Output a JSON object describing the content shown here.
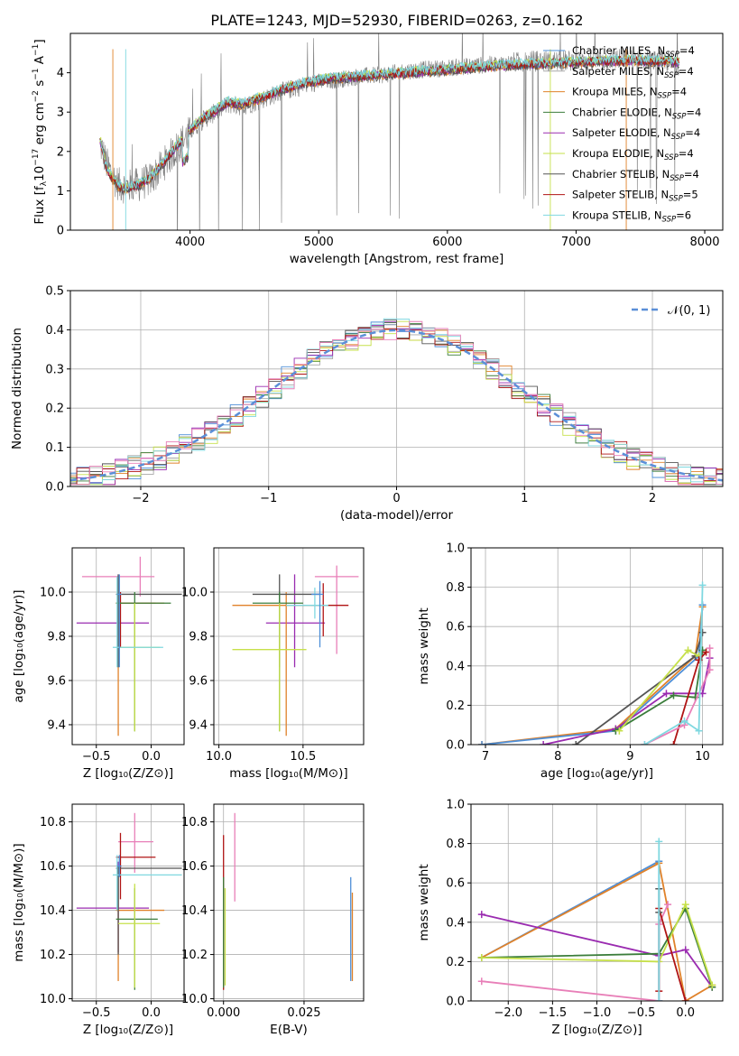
{
  "figure": {
    "title": "PLATE=1243, MJD=52930, FIBERID=0263, z=0.162"
  },
  "colors": {
    "chabrier_miles": "#4e8fd8",
    "salpeter_miles": "#a8a8a8",
    "kroupa_miles": "#e0822a",
    "chabrier_elodie": "#3b7d3b",
    "salpeter_elodie": "#9a2bb0",
    "kroupa_elodie": "#c6e04a",
    "chabrier_stelib": "#555555",
    "salpeter_stelib": "#b01414",
    "kroupa_stelib": "#7fd8e0",
    "pink": "#e87fb8",
    "gray_spectrum": "#7f7f7f",
    "grid": "#b0b0b0",
    "gauss": "#5b8fd8"
  },
  "chart_data": [
    {
      "id": "spectrum",
      "type": "line",
      "title": "PLATE=1243, MJD=52930, FIBERID=0263, z=0.162",
      "xlabel": "wavelength [Angstrom, rest frame]",
      "ylabel_parts": [
        "Flux [f",
        "λ",
        "10",
        "−17",
        " erg cm",
        "−2",
        " s",
        "−1",
        " A",
        "−1",
        "]"
      ],
      "xlim": [
        3070,
        8140
      ],
      "ylim": [
        0,
        5
      ],
      "xticks": [
        4000,
        5000,
        6000,
        7000,
        8000
      ],
      "yticks": [
        0,
        1,
        2,
        3,
        4
      ],
      "grid": false,
      "legend_position": "top-right",
      "legend": [
        {
          "label": "Chabrier MILES, N",
          "sub": "SSP",
          "suffix": "=4",
          "color": "#4e8fd8"
        },
        {
          "label": "Salpeter MILES, N",
          "sub": "SSP",
          "suffix": "=4",
          "color": "#a8a8a8"
        },
        {
          "label": "Kroupa MILES, N",
          "sub": "SSP",
          "suffix": "=4",
          "color": "#e0822a"
        },
        {
          "label": "Chabrier ELODIE, N",
          "sub": "SSP",
          "suffix": "=4",
          "color": "#3b7d3b"
        },
        {
          "label": "Salpeter ELODIE, N",
          "sub": "SSP",
          "suffix": "=4",
          "color": "#9a2bb0"
        },
        {
          "label": "Kroupa ELODIE, N",
          "sub": "SSP",
          "suffix": "=4",
          "color": "#c6e04a"
        },
        {
          "label": "Chabrier STELIB, N",
          "sub": "SSP",
          "suffix": "=4",
          "color": "#555555"
        },
        {
          "label": "Salpeter STELIB, N",
          "sub": "SSP",
          "suffix": "=5",
          "color": "#b01414"
        },
        {
          "label": "Kroupa STELIB, N",
          "sub": "SSP",
          "suffix": "=6",
          "color": "#7fd8e0"
        }
      ],
      "data_continuum": {
        "x": [
          3300,
          3350,
          3400,
          3450,
          3500,
          3600,
          3700,
          3800,
          3900,
          4000,
          4100,
          4200,
          4300,
          4400,
          4500,
          4700,
          4900,
          5100,
          5300,
          5500,
          5700,
          5900,
          6100,
          6300,
          6500,
          6700,
          6900,
          7100,
          7300,
          7500,
          7700,
          7800
        ],
        "y": [
          2.2,
          1.7,
          1.35,
          1.15,
          1.1,
          1.15,
          1.3,
          1.7,
          2.1,
          2.5,
          2.8,
          3.0,
          3.2,
          3.15,
          3.25,
          3.5,
          3.7,
          3.8,
          3.9,
          3.95,
          4.05,
          4.1,
          4.15,
          4.2,
          4.25,
          4.3,
          4.3,
          4.3,
          4.35,
          4.3,
          4.3,
          4.2
        ]
      },
      "model_continuum": {
        "x": [
          3300,
          3350,
          3400,
          3450,
          3500,
          3600,
          3700,
          3800,
          3900,
          4000,
          4100,
          4200,
          4300,
          4400,
          4500,
          4700,
          4900,
          5100,
          5300,
          5500,
          5700,
          5900,
          6100,
          6300,
          6500,
          6700,
          6900,
          7100,
          7300,
          7500,
          7700,
          7800
        ],
        "y": [
          2.3,
          1.6,
          1.3,
          1.1,
          1.05,
          1.15,
          1.35,
          1.75,
          2.15,
          2.55,
          2.85,
          3.05,
          3.25,
          3.2,
          3.3,
          3.55,
          3.75,
          3.85,
          3.9,
          3.95,
          4.0,
          4.05,
          4.1,
          4.15,
          4.2,
          4.22,
          4.25,
          4.28,
          4.3,
          4.3,
          4.28,
          4.25
        ]
      }
    },
    {
      "id": "residuals",
      "type": "line",
      "xlabel": "(data-model)/error",
      "ylabel": "Normed distribution",
      "xlim": [
        -2.55,
        2.55
      ],
      "ylim": [
        0,
        0.5
      ],
      "xticks": [
        -2,
        -1,
        0,
        1,
        2
      ],
      "yticks": [
        0.0,
        0.1,
        0.2,
        0.3,
        0.4,
        0.5
      ],
      "grid": true,
      "legend_position": "top-right",
      "legend": [
        {
          "label": "𝒩(0, 1)",
          "color": "#5b8fd8",
          "style": "dashed"
        }
      ],
      "gaussian": {
        "mu": 0,
        "sigma": 1
      }
    },
    {
      "id": "age_vs_Z",
      "type": "scatter",
      "xlabel": "Z [log₁₀(Z/Z⊙)]",
      "ylabel": "age  [log₁₀(age/yr)]",
      "xlim": [
        -0.72,
        0.3
      ],
      "ylim": [
        9.31,
        10.2
      ],
      "xticks": [
        -0.5,
        0.0
      ],
      "yticks": [
        9.4,
        9.6,
        9.8,
        10.0
      ],
      "grid": true,
      "points": [
        {
          "x": -0.3,
          "xerr": 0.33,
          "y": 10.07,
          "yerr": 0.09,
          "color": "#e87fb8",
          "xc": -0.1
        },
        {
          "x": -0.3,
          "y": 9.86,
          "xlo": -0.68,
          "xhi": -0.02,
          "ylo": 9.66,
          "yhi": 10.08,
          "color": "#9a2bb0"
        },
        {
          "x": -0.28,
          "y": 9.95,
          "xlo": -0.32,
          "xhi": 0.04,
          "ylo": 9.75,
          "yhi": 10.0,
          "color": "#b01414"
        },
        {
          "x": -0.3,
          "y": 9.95,
          "xlo": -0.32,
          "xhi": 0.12,
          "ylo": 9.35,
          "yhi": 10.07,
          "color": "#e0822a"
        },
        {
          "x": -0.3,
          "y": 9.99,
          "xlo": -0.32,
          "xhi": 0.28,
          "ylo": 9.66,
          "yhi": 10.08,
          "color": "#555555"
        },
        {
          "x": -0.15,
          "y": 9.95,
          "xlo": -0.32,
          "xhi": 0.18,
          "ylo": 9.37,
          "yhi": 10.0,
          "color": "#3b7d3b"
        },
        {
          "x": -0.15,
          "y": 9.75,
          "xlo": -0.3,
          "xhi": 0.08,
          "ylo": 9.37,
          "yhi": 9.95,
          "color": "#c6e04a"
        },
        {
          "x": -0.31,
          "y": 9.75,
          "xlo": -0.35,
          "xhi": 0.11,
          "ylo": 9.66,
          "yhi": 10.07,
          "color": "#7fd8e0"
        },
        {
          "x": -0.29,
          "y": 9.99,
          "xlo": -0.31,
          "xhi": -0.27,
          "ylo": 9.66,
          "yhi": 10.08,
          "color": "#4e8fd8"
        }
      ]
    },
    {
      "id": "age_vs_mass",
      "type": "scatter",
      "xlabel": "mass [log₁₀(M/M⊙)]",
      "ylabel": "",
      "xlim": [
        9.97,
        10.86
      ],
      "ylim": [
        9.31,
        10.2
      ],
      "xticks": [
        10.0,
        10.5
      ],
      "yticks": [
        9.4,
        9.6,
        9.8,
        10.0
      ],
      "grid": true,
      "points": [
        {
          "x": 10.7,
          "y": 10.07,
          "xlo": 10.57,
          "xhi": 10.83,
          "ylo": 9.72,
          "yhi": 10.12,
          "color": "#e87fb8"
        },
        {
          "x": 10.45,
          "y": 9.86,
          "xlo": 10.28,
          "xhi": 10.63,
          "ylo": 9.66,
          "yhi": 10.08,
          "color": "#9a2bb0"
        },
        {
          "x": 10.62,
          "y": 9.94,
          "xlo": 10.45,
          "xhi": 10.77,
          "ylo": 9.8,
          "yhi": 10.04,
          "color": "#b01414"
        },
        {
          "x": 10.4,
          "y": 9.94,
          "xlo": 10.08,
          "xhi": 10.55,
          "ylo": 9.35,
          "yhi": 10.0,
          "color": "#e0822a"
        },
        {
          "x": 10.36,
          "y": 9.99,
          "xlo": 10.2,
          "xhi": 10.6,
          "ylo": 9.66,
          "yhi": 10.08,
          "color": "#555555"
        },
        {
          "x": 10.36,
          "y": 9.95,
          "xlo": 10.2,
          "xhi": 10.5,
          "ylo": 9.37,
          "yhi": 10.0,
          "color": "#3b7d3b"
        },
        {
          "x": 10.36,
          "y": 9.74,
          "xlo": 10.08,
          "xhi": 10.52,
          "ylo": 9.37,
          "yhi": 9.95,
          "color": "#c6e04a"
        },
        {
          "x": 10.57,
          "y": 9.94,
          "xlo": 10.4,
          "xhi": 10.65,
          "ylo": 9.88,
          "yhi": 10.02,
          "color": "#7fd8e0"
        },
        {
          "x": 10.6,
          "y": 9.99,
          "xlo": 10.55,
          "xhi": 10.62,
          "ylo": 9.75,
          "yhi": 10.05,
          "color": "#4e8fd8"
        }
      ]
    },
    {
      "id": "weight_vs_age",
      "type": "line",
      "xlabel": "age  [log₁₀(age/yr)]",
      "ylabel": "mass weight",
      "xlim": [
        6.8,
        10.28
      ],
      "ylim": [
        0,
        1.0
      ],
      "xticks": [
        7,
        8,
        9,
        10
      ],
      "yticks": [
        0.0,
        0.2,
        0.4,
        0.6,
        0.8,
        1.0
      ],
      "grid": true,
      "series": [
        {
          "color": "#e0822a",
          "points": [
            [
              6.95,
              0.0
            ],
            [
              8.8,
              0.08
            ],
            [
              9.9,
              0.45
            ],
            [
              10.0,
              0.7
            ]
          ]
        },
        {
          "color": "#4e8fd8",
          "points": [
            [
              6.95,
              0.0
            ],
            [
              8.8,
              0.07
            ],
            [
              9.95,
              0.45
            ],
            [
              10.0,
              0.71
            ]
          ]
        },
        {
          "color": "#555555",
          "points": [
            [
              8.25,
              0.0
            ],
            [
              9.9,
              0.45
            ],
            [
              10.0,
              0.57
            ]
          ]
        },
        {
          "color": "#9a2bb0",
          "points": [
            [
              7.8,
              0.0
            ],
            [
              8.8,
              0.08
            ],
            [
              9.5,
              0.26
            ],
            [
              10.0,
              0.26
            ],
            [
              10.1,
              0.44
            ]
          ]
        },
        {
          "color": "#3b7d3b",
          "points": [
            [
              8.8,
              0.07
            ],
            [
              9.6,
              0.25
            ],
            [
              9.9,
              0.24
            ],
            [
              10.0,
              0.48
            ]
          ]
        },
        {
          "color": "#c6e04a",
          "points": [
            [
              8.85,
              0.07
            ],
            [
              9.8,
              0.48
            ],
            [
              9.95,
              0.45
            ]
          ]
        },
        {
          "color": "#b01414",
          "points": [
            [
              9.6,
              0.0
            ],
            [
              9.95,
              0.43
            ],
            [
              10.05,
              0.47
            ]
          ]
        },
        {
          "color": "#e87fb8",
          "points": [
            [
              9.2,
              0.0
            ],
            [
              9.75,
              0.1
            ],
            [
              10.1,
              0.38
            ],
            [
              10.1,
              0.49
            ]
          ]
        },
        {
          "color": "#7fd8e0",
          "points": [
            [
              9.2,
              0.0
            ],
            [
              9.75,
              0.12
            ],
            [
              9.95,
              0.07
            ],
            [
              10.0,
              0.81
            ]
          ]
        }
      ]
    },
    {
      "id": "mass_vs_Z",
      "type": "scatter",
      "xlabel": "Z [log₁₀(Z/Z⊙)]",
      "ylabel": "mass [log₁₀(M/M⊙)]",
      "xlim": [
        -0.72,
        0.3
      ],
      "ylim": [
        9.99,
        10.88
      ],
      "xticks": [
        -0.5,
        0.0
      ],
      "yticks": [
        10.0,
        10.2,
        10.4,
        10.6,
        10.8
      ],
      "grid": true,
      "points": [
        {
          "x": -0.15,
          "y": 10.71,
          "xlo": -0.3,
          "xhi": 0.02,
          "ylo": 10.57,
          "yhi": 10.84,
          "color": "#e87fb8"
        },
        {
          "x": -0.3,
          "y": 10.41,
          "xlo": -0.68,
          "xhi": -0.02,
          "ylo": 10.21,
          "yhi": 10.62,
          "color": "#9a2bb0"
        },
        {
          "x": -0.28,
          "y": 10.64,
          "xlo": -0.32,
          "xhi": 0.04,
          "ylo": 10.45,
          "yhi": 10.75,
          "color": "#b01414"
        },
        {
          "x": -0.3,
          "y": 10.4,
          "xlo": -0.32,
          "xhi": 0.12,
          "ylo": 10.08,
          "yhi": 10.55,
          "color": "#e0822a"
        },
        {
          "x": -0.3,
          "y": 10.59,
          "xlo": -0.32,
          "xhi": 0.28,
          "ylo": 10.2,
          "yhi": 10.6,
          "color": "#555555"
        },
        {
          "x": -0.15,
          "y": 10.36,
          "xlo": -0.32,
          "xhi": 0.06,
          "ylo": 10.04,
          "yhi": 10.5,
          "color": "#3b7d3b"
        },
        {
          "x": -0.15,
          "y": 10.34,
          "xlo": -0.3,
          "xhi": 0.08,
          "ylo": 10.05,
          "yhi": 10.52,
          "color": "#c6e04a"
        },
        {
          "x": -0.31,
          "y": 10.56,
          "xlo": -0.35,
          "xhi": 0.28,
          "ylo": 10.4,
          "yhi": 10.65,
          "color": "#7fd8e0"
        },
        {
          "x": -0.29,
          "y": 10.6,
          "xlo": -0.31,
          "xhi": -0.27,
          "ylo": 10.55,
          "yhi": 10.65,
          "color": "#4e8fd8"
        }
      ]
    },
    {
      "id": "mass_vs_ebv",
      "type": "scatter",
      "xlabel": "E(B-V)",
      "ylabel": "",
      "xlim": [
        -0.003,
        0.0435
      ],
      "ylim": [
        9.99,
        10.88
      ],
      "xticks": [
        0.0,
        0.025
      ],
      "xticklabels": [
        "0.000",
        "0.025"
      ],
      "yticks": [
        10.0,
        10.2,
        10.4,
        10.6,
        10.8
      ],
      "grid": true,
      "points": [
        {
          "x": 0.0,
          "ylo": 10.04,
          "yhi": 10.74,
          "color": "#b01414"
        },
        {
          "x": 0.0,
          "ylo": 10.05,
          "yhi": 10.55,
          "color": "#3b7d3b"
        },
        {
          "x": 0.0005,
          "ylo": 10.06,
          "yhi": 10.5,
          "color": "#c6e04a"
        },
        {
          "x": 0.0035,
          "ylo": 10.44,
          "yhi": 10.84,
          "color": "#e87fb8"
        },
        {
          "x": 0.0395,
          "ylo": 10.08,
          "yhi": 10.55,
          "color": "#4e8fd8"
        },
        {
          "x": 0.04,
          "ylo": 10.08,
          "yhi": 10.48,
          "color": "#e0822a"
        }
      ]
    },
    {
      "id": "weight_vs_Z",
      "type": "line",
      "xlabel": "Z [log₁₀(Z/Z⊙)]",
      "ylabel": "mass weight",
      "xlim": [
        -2.42,
        0.42
      ],
      "ylim": [
        0,
        1.0
      ],
      "xticks": [
        -2.0,
        -1.5,
        -1.0,
        -0.5,
        0.0
      ],
      "yticks": [
        0.0,
        0.2,
        0.4,
        0.6,
        0.8,
        1.0
      ],
      "grid": true,
      "series": [
        {
          "color": "#4e8fd8",
          "points": [
            [
              -2.3,
              0.22
            ],
            [
              -0.3,
              0.71
            ],
            [
              -0.3,
              0.0
            ]
          ]
        },
        {
          "color": "#e0822a",
          "points": [
            [
              -2.3,
              0.22
            ],
            [
              -0.3,
              0.7
            ],
            [
              0.0,
              0.0
            ],
            [
              0.3,
              0.08
            ]
          ]
        },
        {
          "color": "#9a2bb0",
          "points": [
            [
              -2.3,
              0.44
            ],
            [
              -0.3,
              0.23
            ],
            [
              0.0,
              0.26
            ],
            [
              0.3,
              0.07
            ]
          ]
        },
        {
          "color": "#3b7d3b",
          "points": [
            [
              -2.3,
              0.22
            ],
            [
              -0.3,
              0.24
            ],
            [
              0.0,
              0.47
            ],
            [
              0.3,
              0.07
            ]
          ]
        },
        {
          "color": "#c6e04a",
          "points": [
            [
              -2.3,
              0.22
            ],
            [
              -0.3,
              0.2
            ],
            [
              0.0,
              0.49
            ],
            [
              0.3,
              0.08
            ]
          ]
        },
        {
          "color": "#e87fb8",
          "points": [
            [
              -2.3,
              0.1
            ],
            [
              -0.3,
              0.0
            ],
            [
              -0.3,
              0.39
            ],
            [
              -0.2,
              0.49
            ]
          ]
        },
        {
          "color": "#b01414",
          "points": [
            [
              -0.3,
              0.05
            ],
            [
              -0.3,
              0.47
            ],
            [
              0.0,
              0.0
            ]
          ]
        },
        {
          "color": "#555555",
          "points": [
            [
              -0.3,
              0.57
            ],
            [
              -0.3,
              0.45
            ]
          ]
        },
        {
          "color": "#7fd8e0",
          "points": [
            [
              -0.3,
              0.81
            ],
            [
              -0.3,
              0.0
            ]
          ]
        }
      ]
    }
  ]
}
